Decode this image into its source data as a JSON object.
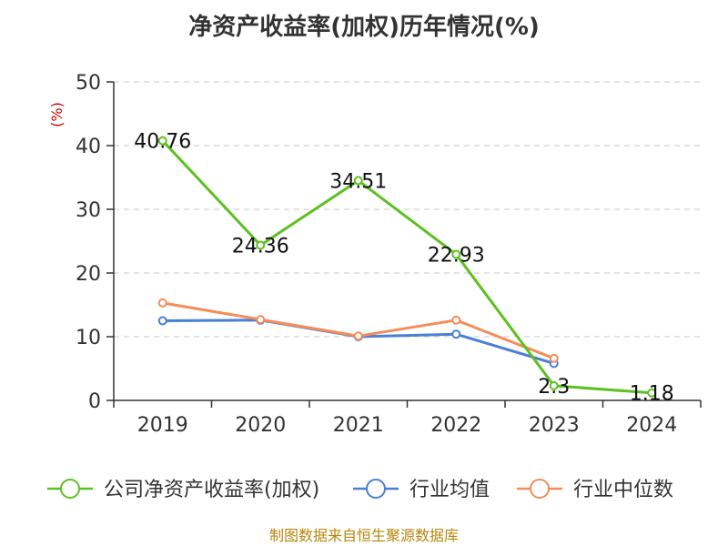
{
  "chart_data": {
    "type": "line",
    "title": "净资产收益率(加权)历年情况(%)",
    "ylabel": "(%)",
    "xlabel": "",
    "ylim": [
      0,
      50
    ],
    "yticks": [
      0,
      10,
      20,
      30,
      40,
      50
    ],
    "categories": [
      "2019",
      "2020",
      "2021",
      "2022",
      "2023",
      "2024"
    ],
    "grid": true,
    "legend_position": "bottom",
    "series": [
      {
        "name": "公司净资产收益率(加权)",
        "color": "#5cc020",
        "values": [
          40.76,
          24.36,
          34.51,
          22.93,
          2.3,
          1.18
        ],
        "labels": [
          "40.76",
          "24.36",
          "34.51",
          "22.93",
          "2.3",
          "1.18"
        ]
      },
      {
        "name": "行业均值",
        "color": "#4a7fd6",
        "values": [
          12.5,
          12.6,
          10.0,
          10.4,
          5.8,
          null
        ]
      },
      {
        "name": "行业中位数",
        "color": "#f58c5a",
        "values": [
          15.3,
          12.7,
          10.1,
          12.6,
          6.6,
          null
        ]
      }
    ],
    "source": "制图数据来自恒生聚源数据库"
  }
}
